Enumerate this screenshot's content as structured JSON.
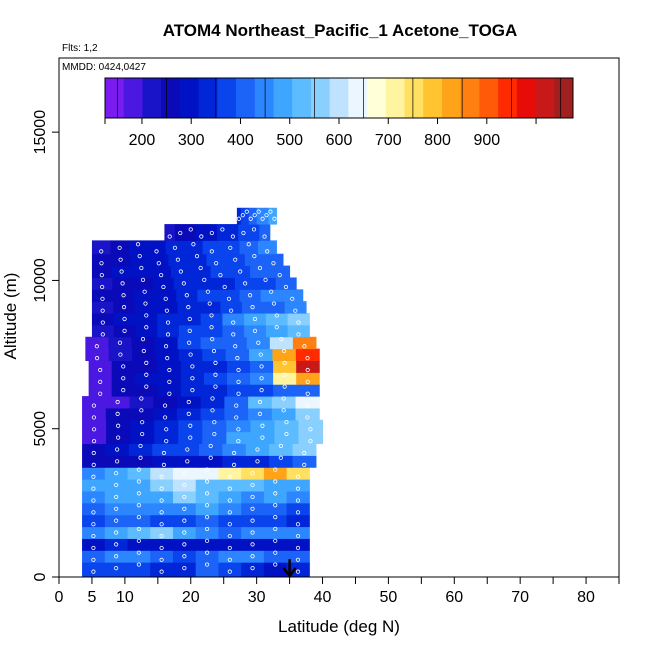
{
  "chart_data": {
    "type": "heatmap",
    "title": "ATOM4 Northeast_Pacific_1 Acetone_TOGA",
    "flights_note": "Flts: 1,2",
    "date_note": "MMDD: 0424,0427",
    "xlabel": "Latitude (deg N)",
    "ylabel": "Altitude (m)",
    "xlim": [
      0,
      85
    ],
    "ylim": [
      0,
      17500
    ],
    "x_tick_labels": [
      "0",
      "5",
      "10",
      "20",
      "30",
      "40",
      "50",
      "60",
      "70",
      "80"
    ],
    "x_tick_values": [
      0,
      5,
      10,
      20,
      30,
      40,
      50,
      60,
      70,
      80
    ],
    "x_minor_ticks": [
      15,
      25,
      35,
      45,
      55,
      65,
      75,
      85
    ],
    "y_tick_labels": [
      "0",
      "5000",
      "10000",
      "15000"
    ],
    "y_tick_values": [
      0,
      5000,
      10000,
      15000
    ],
    "colorbar": {
      "range": [
        125,
        1075
      ],
      "tick_labels": [
        "200",
        "300",
        "400",
        "500",
        "600",
        "700",
        "800",
        "900"
      ],
      "tick_values": [
        200,
        300,
        400,
        500,
        600,
        700,
        800,
        900
      ],
      "colors": [
        "#7a1cf0",
        "#4a18e0",
        "#1a14c8",
        "#0a0ab8",
        "#0012c4",
        "#0026d8",
        "#0a44ec",
        "#1c64f8",
        "#2c86ff",
        "#3ea6ff",
        "#5cbcff",
        "#8ad0ff",
        "#bfe2ff",
        "#ecf6ff",
        "#ffffd8",
        "#fff4a0",
        "#ffe060",
        "#ffc430",
        "#ffa418",
        "#ff8010",
        "#ff5a08",
        "#ff2a00",
        "#e80c08",
        "#c81818",
        "#a02020"
      ]
    },
    "arrow_latitude": 35,
    "rows": [
      {
        "alt": 300,
        "lo": 3.5,
        "hi": 38,
        "vals": [
          380,
          390,
          360,
          330,
          350,
          400,
          370,
          330,
          310,
          340
        ]
      },
      {
        "alt": 700,
        "lo": 3.5,
        "hi": 38,
        "vals": [
          420,
          460,
          430,
          400,
          380,
          410,
          430,
          450,
          420,
          400
        ]
      },
      {
        "alt": 1100,
        "lo": 3.5,
        "hi": 38,
        "vals": [
          300,
          320,
          300,
          280,
          290,
          300,
          310,
          300,
          300,
          290
        ]
      },
      {
        "alt": 1500,
        "lo": 3.5,
        "hi": 38,
        "vals": [
          430,
          500,
          520,
          550,
          470,
          430,
          420,
          430,
          450,
          440
        ]
      },
      {
        "alt": 1900,
        "lo": 3.5,
        "hi": 38,
        "vals": [
          390,
          420,
          400,
          380,
          390,
          420,
          390,
          370,
          360,
          350
        ]
      },
      {
        "alt": 2300,
        "lo": 3.5,
        "hi": 38,
        "vals": [
          420,
          440,
          430,
          440,
          460,
          480,
          440,
          420,
          400,
          390
        ]
      },
      {
        "alt": 2700,
        "lo": 3.5,
        "hi": 38,
        "vals": [
          440,
          470,
          480,
          490,
          560,
          510,
          480,
          460,
          480,
          450
        ]
      },
      {
        "alt": 3100,
        "lo": 3.5,
        "hi": 38,
        "vals": [
          470,
          490,
          500,
          560,
          600,
          530,
          520,
          520,
          500,
          480
        ]
      },
      {
        "alt": 3500,
        "lo": 3.5,
        "hi": 38,
        "vals": [
          430,
          490,
          520,
          600,
          650,
          640,
          700,
          760,
          820,
          760
        ]
      },
      {
        "alt": 3900,
        "lo": 3.5,
        "hi": 39,
        "vals": [
          240,
          260,
          270,
          280,
          290,
          300,
          320,
          350,
          380,
          420
        ]
      },
      {
        "alt": 4300,
        "lo": 3.5,
        "hi": 39,
        "vals": [
          270,
          300,
          320,
          360,
          390,
          420,
          450,
          500,
          540,
          560
        ]
      },
      {
        "alt": 4700,
        "lo": 3.5,
        "hi": 40,
        "vals": [
          180,
          240,
          280,
          330,
          380,
          420,
          470,
          500,
          530,
          580
        ]
      },
      {
        "alt": 5100,
        "lo": 3.5,
        "hi": 40,
        "vals": [
          200,
          260,
          300,
          340,
          380,
          420,
          460,
          500,
          540,
          560
        ]
      },
      {
        "alt": 5500,
        "lo": 3.5,
        "hi": 39.5,
        "vals": [
          190,
          250,
          270,
          300,
          330,
          360,
          400,
          450,
          500,
          560
        ]
      },
      {
        "alt": 5900,
        "lo": 3.5,
        "hi": 39.5,
        "vals": [
          170,
          200,
          230,
          260,
          300,
          340,
          420,
          520,
          580,
          620
        ]
      },
      {
        "alt": 6300,
        "lo": 4.5,
        "hi": 39.5,
        "vals": [
          190,
          240,
          270,
          300,
          320,
          340,
          360,
          380,
          400,
          420
        ]
      },
      {
        "alt": 6700,
        "lo": 4.5,
        "hi": 39.5,
        "vals": [
          200,
          250,
          280,
          310,
          340,
          370,
          400,
          440,
          700,
          820
        ]
      },
      {
        "alt": 7100,
        "lo": 4.5,
        "hi": 39.5,
        "vals": [
          200,
          240,
          270,
          290,
          320,
          350,
          380,
          420,
          780,
          1000
        ]
      },
      {
        "alt": 7500,
        "lo": 4,
        "hi": 39.5,
        "vals": [
          180,
          230,
          260,
          300,
          340,
          380,
          420,
          470,
          820,
          960
        ]
      },
      {
        "alt": 7900,
        "lo": 4,
        "hi": 39,
        "vals": [
          170,
          220,
          260,
          310,
          360,
          400,
          420,
          460,
          600,
          880
        ]
      },
      {
        "alt": 8300,
        "lo": 5,
        "hi": 38,
        "vals": [
          210,
          260,
          300,
          330,
          360,
          390,
          420,
          440,
          480,
          520
        ]
      },
      {
        "alt": 8700,
        "lo": 5,
        "hi": 38,
        "vals": [
          250,
          280,
          300,
          330,
          350,
          380,
          430,
          480,
          520,
          560
        ]
      },
      {
        "alt": 9100,
        "lo": 5,
        "hi": 37.5,
        "vals": [
          230,
          260,
          280,
          300,
          330,
          350,
          380,
          400,
          420,
          460
        ]
      },
      {
        "alt": 9500,
        "lo": 5,
        "hi": 37,
        "vals": [
          250,
          270,
          290,
          310,
          340,
          360,
          380,
          400,
          430,
          460
        ]
      },
      {
        "alt": 9900,
        "lo": 5,
        "hi": 36,
        "vals": [
          230,
          250,
          270,
          300,
          320,
          330,
          340,
          360,
          380,
          420
        ]
      },
      {
        "alt": 10300,
        "lo": 5,
        "hi": 35,
        "vals": [
          260,
          280,
          290,
          300,
          320,
          340,
          360,
          380,
          400,
          420
        ]
      },
      {
        "alt": 10700,
        "lo": 5,
        "hi": 34,
        "vals": [
          240,
          260,
          280,
          300,
          320,
          340,
          360,
          380,
          400,
          420
        ]
      },
      {
        "alt": 11100,
        "lo": 5,
        "hi": 33,
        "vals": [
          230,
          250,
          280,
          300,
          330,
          350,
          370,
          390,
          410,
          430
        ]
      },
      {
        "alt": 11600,
        "lo": 16,
        "hi": 32,
        "vals": [
          220,
          240,
          260,
          280,
          300,
          320,
          340,
          360,
          380,
          400
        ]
      },
      {
        "alt": 12200,
        "lo": 27,
        "hi": 33,
        "vals": [
          330,
          360,
          380,
          400,
          420,
          440,
          450,
          460,
          470,
          480
        ]
      }
    ]
  }
}
